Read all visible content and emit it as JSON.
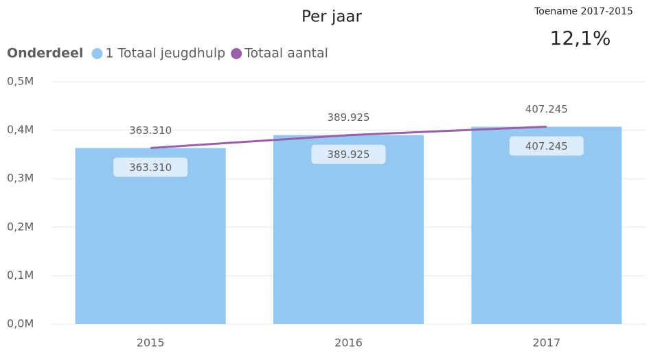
{
  "chart_data": {
    "type": "bar",
    "title": "Per jaar",
    "legend_title": "Onderdeel",
    "categories": [
      "2015",
      "2016",
      "2017"
    ],
    "series": [
      {
        "name": "1 Totaal jeugdhulp",
        "type": "bar",
        "color": "#94c8f0",
        "values": [
          363310,
          389925,
          407245
        ],
        "value_labels": [
          "363.310",
          "389.925",
          "407.245"
        ]
      },
      {
        "name": "Totaal aantal",
        "type": "line",
        "color": "#9b5ea8",
        "values": [
          363310,
          389925,
          407245
        ],
        "value_labels": [
          "363.310",
          "389.925",
          "407.245"
        ]
      }
    ],
    "ylim": [
      0,
      500000
    ],
    "yticks": [
      {
        "value": 0,
        "label": "0,0M"
      },
      {
        "value": 100000,
        "label": "0,1M"
      },
      {
        "value": 200000,
        "label": "0,2M"
      },
      {
        "value": 300000,
        "label": "0,3M"
      },
      {
        "value": 400000,
        "label": "0,4M"
      },
      {
        "value": 500000,
        "label": "0,5M"
      }
    ],
    "grid": true
  },
  "card": {
    "title": "Toename 2017-2015",
    "value": "12,1%"
  }
}
